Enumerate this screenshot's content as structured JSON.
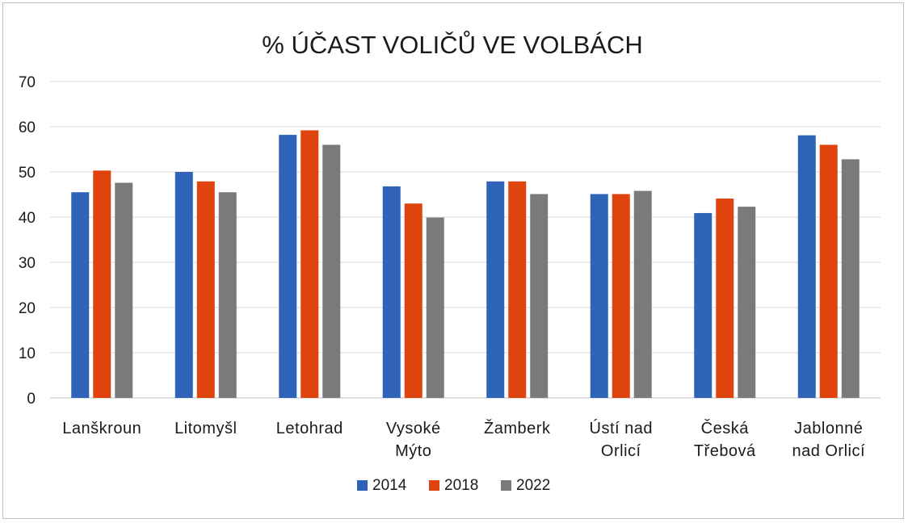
{
  "chart_data": {
    "type": "bar",
    "title": "% ÚČAST VOLIČŮ VE VOLBÁCH",
    "xlabel": "",
    "ylabel": "",
    "ylim": [
      0,
      70
    ],
    "yticks": [
      0,
      10,
      20,
      30,
      40,
      50,
      60,
      70
    ],
    "grid": true,
    "legend_position": "bottom",
    "categories": [
      [
        "Lanškroun"
      ],
      [
        "Litomyšl"
      ],
      [
        "Letohrad"
      ],
      [
        "Vysoké",
        "Mýto"
      ],
      [
        "Žamberk"
      ],
      [
        "Ústí nad",
        "Orlicí"
      ],
      [
        "Česká",
        "Třebová"
      ],
      [
        "Jablonné",
        "nad Orlicí"
      ]
    ],
    "series": [
      {
        "name": "2014",
        "color": "#2f63b8",
        "values": [
          45.5,
          50.0,
          58.2,
          46.8,
          47.9,
          45.1,
          40.9,
          58.1
        ]
      },
      {
        "name": "2018",
        "color": "#e0440e",
        "values": [
          50.3,
          47.9,
          59.2,
          43.0,
          47.9,
          45.1,
          44.1,
          56.0
        ]
      },
      {
        "name": "2022",
        "color": "#7a7a7a",
        "values": [
          47.6,
          45.5,
          56.0,
          39.9,
          45.1,
          45.8,
          42.3,
          52.8
        ]
      }
    ]
  }
}
